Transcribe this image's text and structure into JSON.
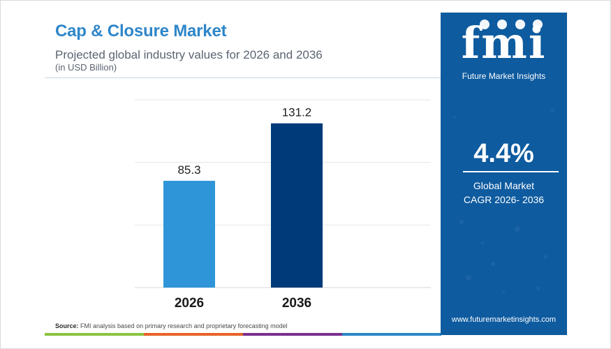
{
  "header": {
    "title": "Cap & Closure Market",
    "subtitle": "Projected global industry values for 2026 and 2036",
    "unit": "(in USD Billion)"
  },
  "chart_data": {
    "type": "bar",
    "categories": [
      "2026",
      "2036"
    ],
    "values": [
      85.3,
      131.2
    ],
    "data_labels": [
      "85.3",
      "131.2"
    ],
    "ylim": [
      0,
      150
    ],
    "grid": true,
    "bar_colors": [
      "#2e96d8",
      "#003a78"
    ],
    "title": "",
    "xlabel": "",
    "ylabel": ""
  },
  "source": {
    "label": "Source:",
    "text": "FMI analysis based on primary research and proprietary forecasting model"
  },
  "brand": {
    "letters": "fmi",
    "name": "Future Market Insights",
    "website": "www.futuremarketinsights.com",
    "panel_color": "#0e5b9f"
  },
  "cagr": {
    "value": "4.4%",
    "label_line1": "Global Market",
    "label_line2": "CAGR 2026- 2036"
  },
  "stripe_colors": [
    "#8ac43f",
    "#e8632b",
    "#7b2f8f",
    "#2e86c9"
  ]
}
